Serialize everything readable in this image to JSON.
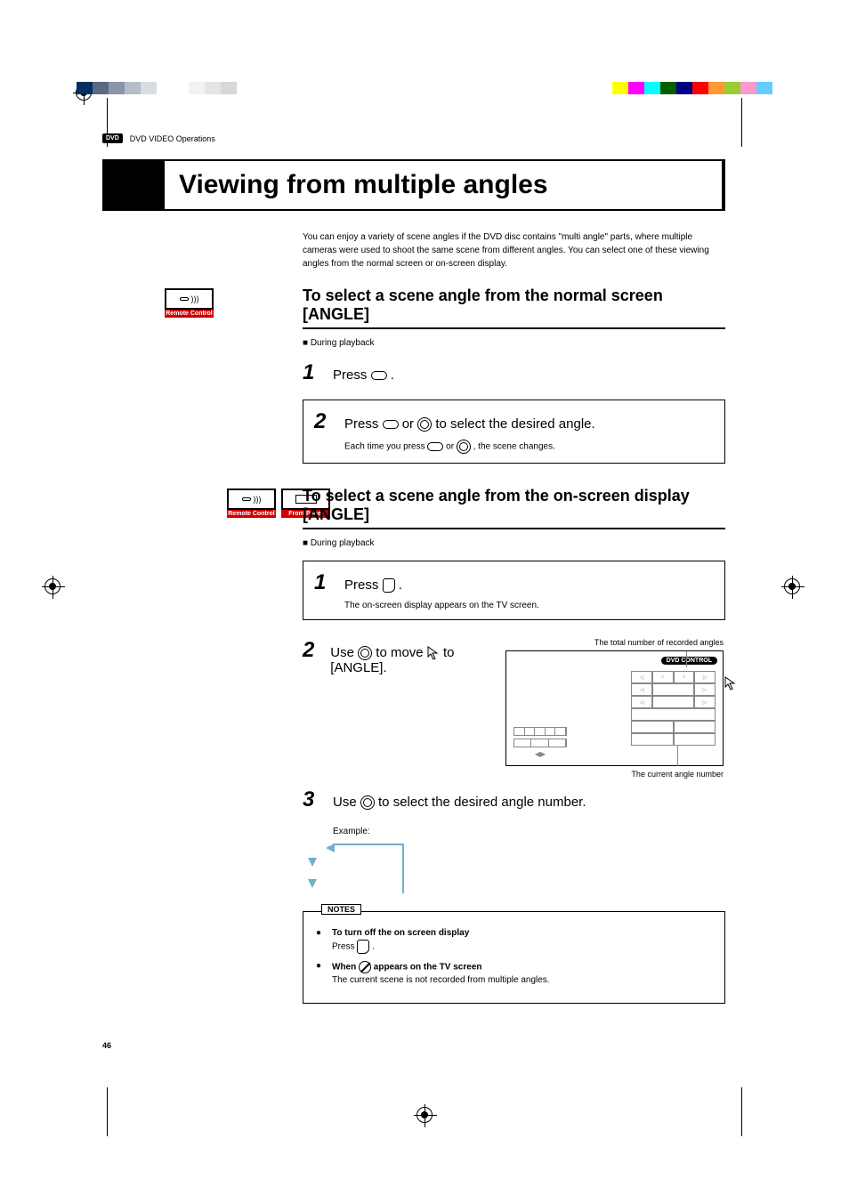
{
  "colors": {
    "left_bar": [
      "#003060",
      "#5a6a80",
      "#8a96a8",
      "#b5bdc8",
      "#d8dde4",
      "#ffffff",
      "#ffffff",
      "#f2f2f2",
      "#e5e5e5",
      "#d8d8d8"
    ],
    "right_bar": [
      "#ffff00",
      "#ff00ff",
      "#00ffff",
      "#006000",
      "#000080",
      "#ff0000",
      "#ff9933",
      "#99cc33",
      "#ff99cc",
      "#66ccff"
    ],
    "accent_teal": "#70b0c8",
    "red": "#c00000"
  },
  "header": {
    "badge": "DVD",
    "section": "DVD VIDEO Operations"
  },
  "title": "Viewing from multiple angles",
  "intro": "You can enjoy a variety of scene angles if the DVD disc contains \"multi angle\" parts, where multiple cameras were used to shoot the same scene from different angles.  You can select one of these viewing angles from the normal screen or on-screen display.",
  "controllers": {
    "remote": "Remote Control",
    "front": "Front Panel"
  },
  "section1": {
    "heading": "To select a scene angle from the normal screen [ANGLE]",
    "during": "During playback",
    "step1": "Press ",
    "step1_after": ".",
    "step2": "Press ",
    "step2_mid": " or ",
    "step2_after": " to select the desired angle.",
    "step2_sub_a": "Each time you press ",
    "step2_sub_b": " or ",
    "step2_sub_c": ", the scene changes."
  },
  "section2": {
    "heading": "To select a scene angle from the on-screen display [ANGLE]",
    "during": "During playback",
    "step1": "Press   ",
    "step1_after": ".",
    "step1_sub": "The on-screen display appears on the TV screen.",
    "step2_a": "Use ",
    "step2_b": " to move ",
    "step2_c": " to [ANGLE].",
    "osd_caption_top": "The total number of recorded angles",
    "osd_caption_bot": "The current angle number",
    "osd_control": "DVD CONTROL",
    "step3_a": "Use ",
    "step3_b": " to select the desired angle number.",
    "example": "Example:"
  },
  "notes": {
    "legend": "NOTES",
    "n1_title": "To turn off the on screen display",
    "n1_body_a": "Press  ",
    "n1_body_b": ".",
    "n2_title_a": "When ",
    "n2_title_b": " appears on the TV screen",
    "n2_body": "The current scene is not recorded from multiple angles."
  },
  "page_number": "46"
}
